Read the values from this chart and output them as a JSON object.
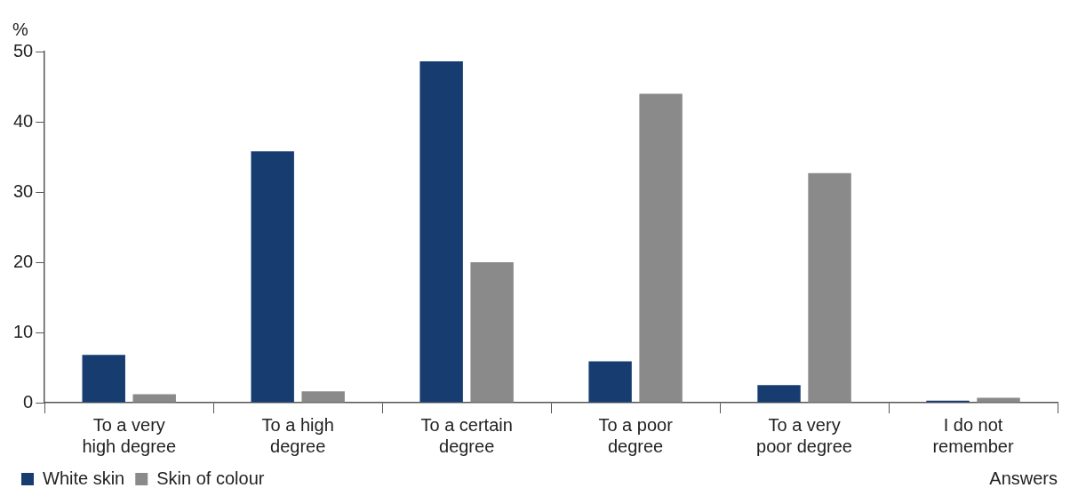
{
  "chart_data": {
    "type": "bar",
    "categories": [
      "To a very high degree",
      "To a high degree",
      "To a certain degree",
      "To a poor degree",
      "To a very poor degree",
      "I do not remember"
    ],
    "series": [
      {
        "name": "White skin",
        "color": "#173d70",
        "values": [
          6.8,
          35.8,
          48.6,
          5.9,
          2.5,
          0.3
        ]
      },
      {
        "name": "Skin of colour",
        "color": "#8a8a8a",
        "values": [
          1.2,
          1.6,
          20,
          44,
          32.7,
          0.7
        ]
      }
    ],
    "ylabel": "%",
    "xlabel": "Answers",
    "ylim": [
      0,
      50
    ],
    "yticks": [
      0,
      10,
      20,
      30,
      40,
      50
    ],
    "grid": false,
    "legend": "bottom left"
  }
}
